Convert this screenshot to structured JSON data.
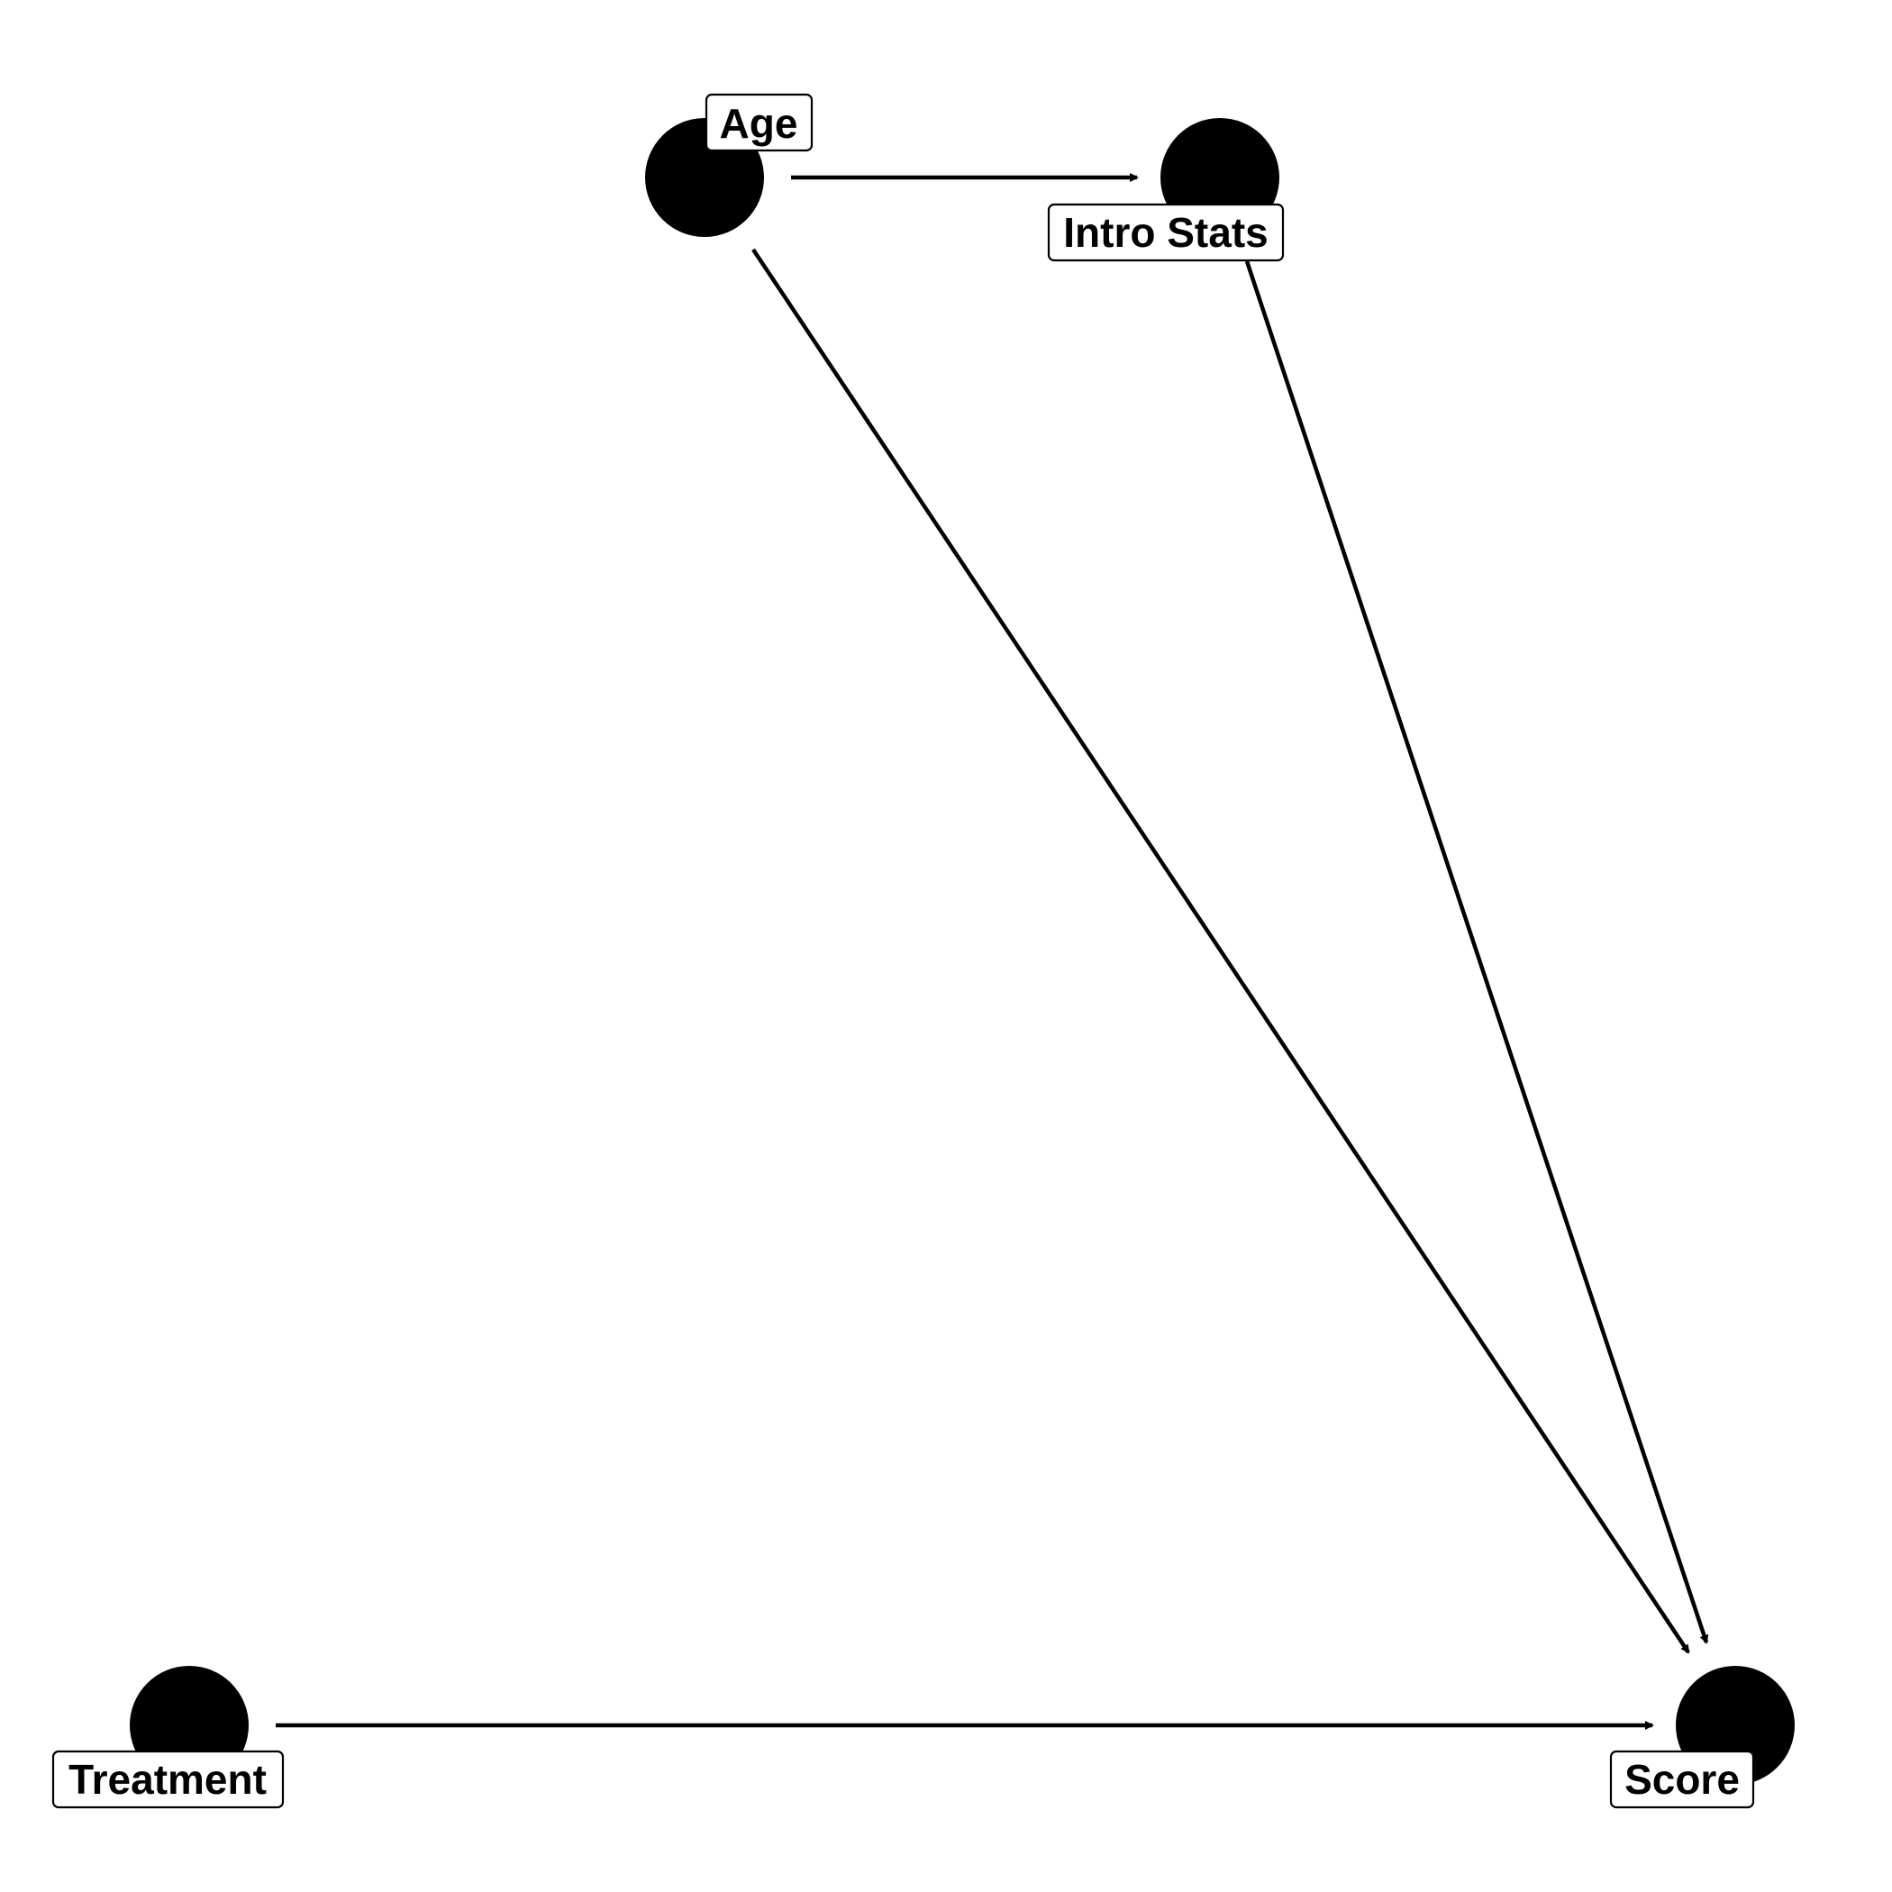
{
  "diagram": {
    "type": "directed-acyclic-graph",
    "nodes": [
      {
        "id": "age",
        "label": "Age"
      },
      {
        "id": "intro_stats",
        "label": "Intro Stats"
      },
      {
        "id": "treatment",
        "label": "Treatment"
      },
      {
        "id": "score",
        "label": "Score"
      }
    ],
    "edges": [
      {
        "from": "age",
        "to": "intro_stats"
      },
      {
        "from": "age",
        "to": "score"
      },
      {
        "from": "intro_stats",
        "to": "score"
      },
      {
        "from": "treatment",
        "to": "score"
      }
    ]
  },
  "colors": {
    "node": "#000000",
    "edge": "#000000",
    "label_fill": "#ffffff",
    "label_border": "#000000",
    "background": "#ffffff"
  }
}
